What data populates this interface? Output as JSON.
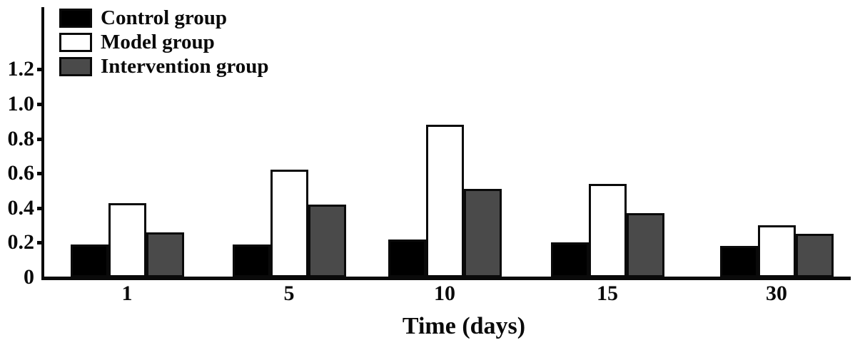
{
  "chart_data": {
    "type": "bar",
    "title": "",
    "xlabel": "Time (days)",
    "ylabel": "",
    "categories": [
      "1",
      "5",
      "10",
      "15",
      "30"
    ],
    "series": [
      {
        "name": "Control group",
        "color": "#000000",
        "values": [
          0.19,
          0.19,
          0.22,
          0.2,
          0.18
        ]
      },
      {
        "name": "Model group",
        "color": "#ffffff",
        "values": [
          0.43,
          0.62,
          0.88,
          0.54,
          0.3
        ]
      },
      {
        "name": "Intervention group",
        "color": "#4a4a4a",
        "values": [
          0.26,
          0.42,
          0.51,
          0.37,
          0.25
        ]
      }
    ],
    "y_ticks": [
      0,
      0.2,
      0.4,
      0.6,
      0.8,
      1.0,
      1.2
    ],
    "y_tick_labels": [
      "0",
      "0.2",
      "0.4",
      "0.6",
      "0.8",
      "1.0",
      "1.2"
    ],
    "ylim": [
      0,
      1.56
    ],
    "grid": false,
    "legend_position": "top-left",
    "bar_outline_color": "#000000",
    "axis_color": "#0a0a0a"
  }
}
